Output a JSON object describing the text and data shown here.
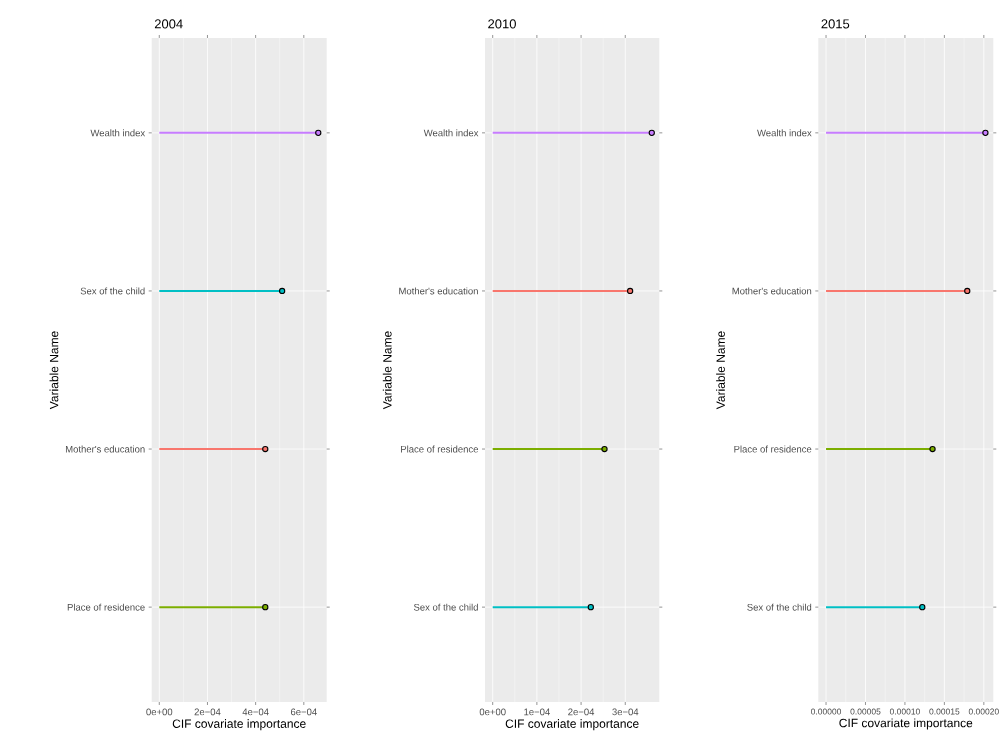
{
  "chart_data": [
    {
      "type": "lollipop",
      "orientation": "horizontal",
      "title": "2004",
      "xlabel": "CIF covariate  importance",
      "ylabel": "Variable Name",
      "categories": [
        "Wealth index",
        "Sex of the child",
        "Mother's education",
        "Place of residence"
      ],
      "values": [
        0.00066,
        0.00051,
        0.00044,
        0.00044
      ],
      "colors": [
        "#c77cff",
        "#00bfc4",
        "#f8766d",
        "#7cae00"
      ],
      "xlim": [
        -3.15e-05,
        0.000695
      ],
      "xticks": [
        {
          "value": 0,
          "label": "0e+00"
        },
        {
          "value": 0.0002,
          "label": "2e−04"
        },
        {
          "value": 0.0004,
          "label": "4e−04"
        },
        {
          "value": 0.0006,
          "label": "6e−04"
        }
      ],
      "grid": true,
      "marker": "circle"
    },
    {
      "type": "lollipop",
      "orientation": "horizontal",
      "title": "2010",
      "xlabel": "CIF covariate  importance",
      "ylabel": "Variable Name",
      "categories": [
        "Wealth index",
        "Mother's education",
        "Place of residence",
        "Sex of the child"
      ],
      "values": [
        0.00036,
        0.000311,
        0.000253,
        0.000222
      ],
      "colors": [
        "#c77cff",
        "#f8766d",
        "#7cae00",
        "#00bfc4"
      ],
      "xlim": [
        -1.74e-05,
        0.000377
      ],
      "xticks": [
        {
          "value": 0,
          "label": "0e+00"
        },
        {
          "value": 0.0001,
          "label": "1e−04"
        },
        {
          "value": 0.0002,
          "label": "2e−04"
        },
        {
          "value": 0.0003,
          "label": "3e−04"
        }
      ],
      "grid": true,
      "marker": "circle"
    },
    {
      "type": "lollipop",
      "orientation": "horizontal",
      "title": "2015",
      "xlabel": "CIF covariate  importance",
      "ylabel": "Variable Name",
      "categories": [
        "Wealth index",
        "Mother's education",
        "Place of residence",
        "Sex of the child"
      ],
      "values": [
        0.000202,
        0.000179,
        0.000135,
        0.000122
      ],
      "colors": [
        "#c77cff",
        "#f8766d",
        "#7cae00",
        "#00bfc4"
      ],
      "xlim": [
        -9.8e-06,
        0.000212
      ],
      "xticks": [
        {
          "value": 0,
          "label": "0.00000"
        },
        {
          "value": 5e-05,
          "label": "0.00005"
        },
        {
          "value": 0.0001,
          "label": "0.00010"
        },
        {
          "value": 0.00015,
          "label": "0.00015"
        },
        {
          "value": 0.0002,
          "label": "0.00020"
        }
      ],
      "grid": true,
      "marker": "circle"
    }
  ]
}
